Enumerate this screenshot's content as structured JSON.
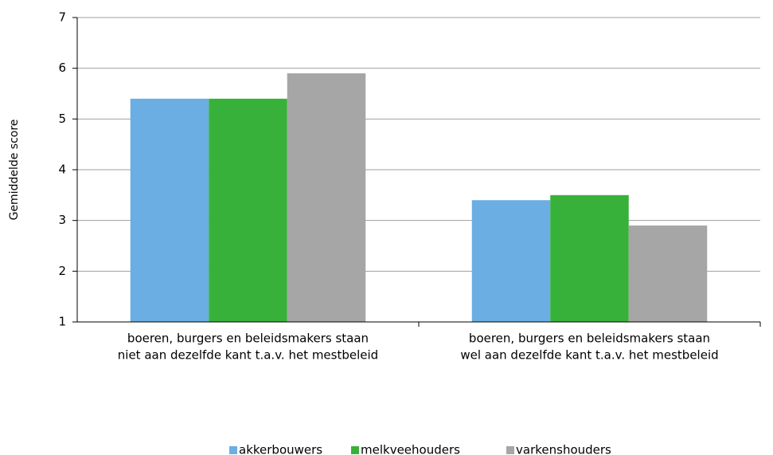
{
  "chart_data": {
    "type": "bar",
    "ylabel": "Gemiddelde score",
    "categories": [
      [
        "boeren, burgers en beleidsmakers staan",
        "niet aan dezelfde kant t.a.v. het mestbeleid"
      ],
      [
        "boeren, burgers en beleidsmakers staan",
        "wel aan dezelfde kant t.a.v. het mestbeleid"
      ]
    ],
    "series": [
      {
        "name": "akkerbouwers",
        "color": "#6aaee4",
        "values": [
          5.4,
          3.4
        ]
      },
      {
        "name": "melkveehouders",
        "color": "#38b13a",
        "values": [
          5.4,
          3.5
        ]
      },
      {
        "name": "varkenshouders",
        "color": "#a6a6a6",
        "values": [
          5.9,
          2.9
        ]
      }
    ],
    "ylim": [
      1,
      7
    ],
    "yticks": [
      1,
      2,
      3,
      4,
      5,
      6,
      7
    ],
    "grid": true,
    "legend": "bottom"
  }
}
